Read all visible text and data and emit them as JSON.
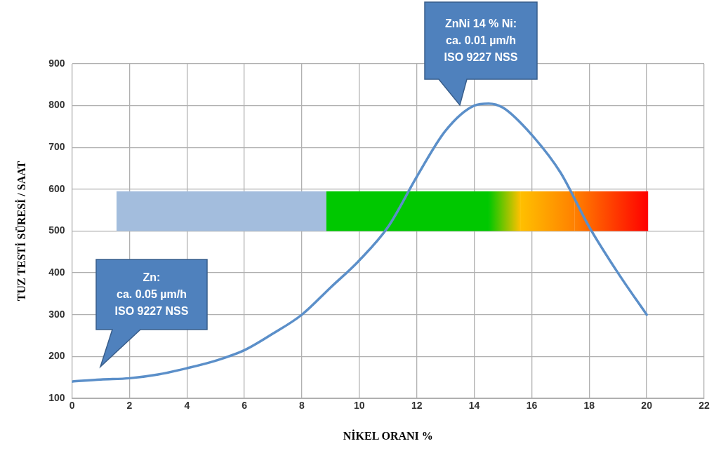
{
  "chart_data": {
    "type": "line",
    "xlabel": "NİKEL ORANI %",
    "ylabel": "TUZ TESTİ SÜRESİ / SAAT",
    "x": [
      0,
      1,
      2,
      3,
      4,
      5,
      6,
      7,
      8,
      9,
      10,
      11,
      12,
      13,
      14,
      14.5,
      15,
      16,
      17,
      18,
      19,
      20
    ],
    "series": [
      {
        "color": "#5b8fc9",
        "values": [
          140,
          145,
          148,
          157,
          172,
          190,
          215,
          255,
          300,
          365,
          430,
          510,
          630,
          740,
          800,
          805,
          795,
          730,
          640,
          510,
          400,
          300
        ]
      }
    ],
    "xlim": [
      0,
      22
    ],
    "xticks": [
      0,
      2,
      4,
      6,
      8,
      10,
      12,
      14,
      16,
      18,
      20,
      22
    ],
    "ylim": [
      100,
      900
    ],
    "yticks": [
      100,
      200,
      300,
      400,
      500,
      600,
      700,
      800,
      900
    ],
    "grid": true,
    "legend": false,
    "marker": "none",
    "line_style": "solid",
    "bands": [
      {
        "axis": "x",
        "from": 1.55,
        "to": 8.85,
        "color": "#a3bddd"
      },
      {
        "axis": "x",
        "from": 8.85,
        "to": 14.5,
        "color": "#00c800"
      },
      {
        "axis": "x",
        "from": 14.5,
        "to": 15.6,
        "color": "#ffc000"
      },
      {
        "axis": "x",
        "from": 15.6,
        "to": 17.5,
        "color": "#ff8000"
      },
      {
        "axis": "x",
        "from": 17.5,
        "to": 20.05,
        "color": "#ff0000"
      }
    ],
    "annotations": [
      "ZnNi 14 % Ni:\nca. 0.01 µm/h\nISO 9227 NSS",
      "Zn:\nca. 0.05 µm/h\nISO 9227 NSS"
    ]
  }
}
